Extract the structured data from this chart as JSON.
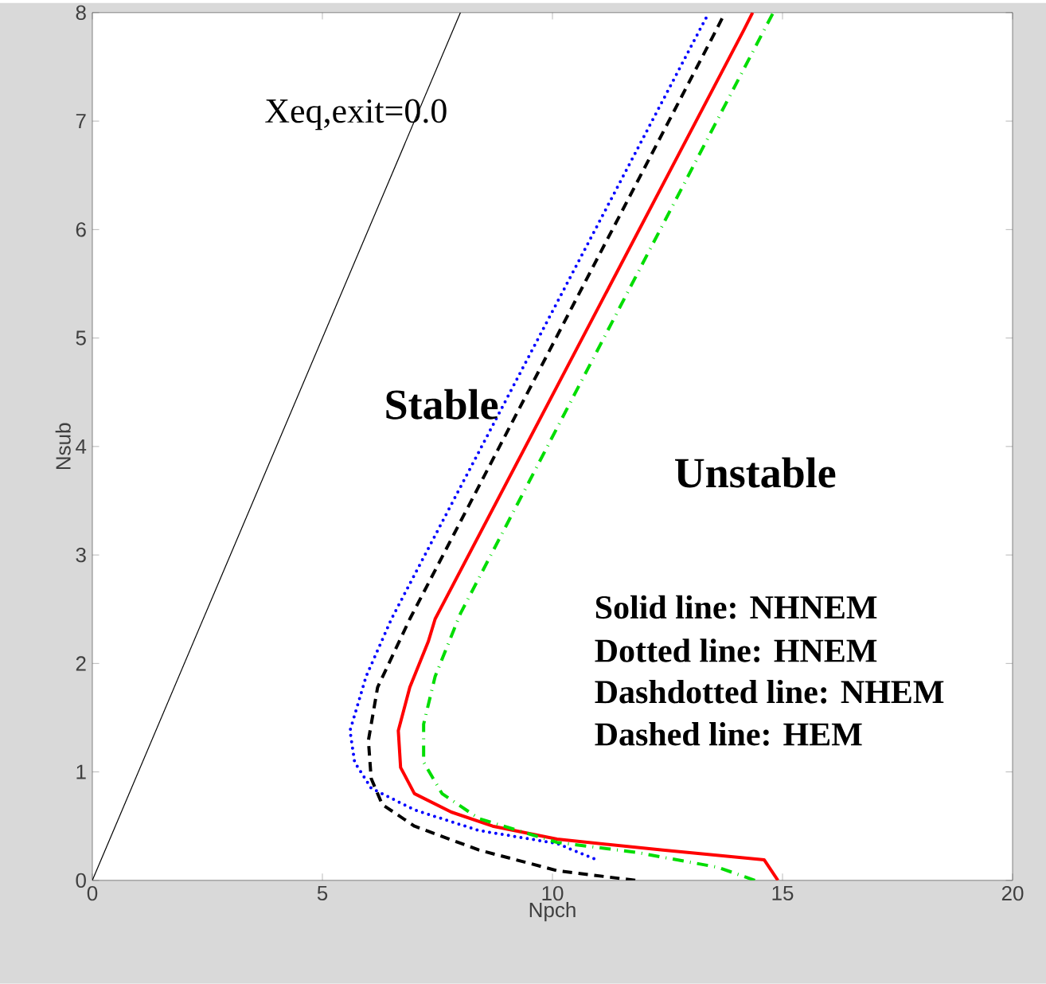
{
  "chart_data": {
    "type": "line",
    "xlabel": "Npch",
    "ylabel": "Nsub",
    "xlim": [
      0,
      20
    ],
    "ylim": [
      0,
      8
    ],
    "xticks": [
      0,
      5,
      10,
      15,
      20
    ],
    "yticks": [
      0,
      1,
      2,
      3,
      4,
      5,
      6,
      7,
      8
    ],
    "grid": false,
    "annotations": [
      "Xeq,exit=0.0",
      "Stable",
      "Unstable",
      "Solid line: NHNEM",
      "Dotted line: HNEM",
      "Dashdotted line: NHEM",
      "Dashed line: HEM"
    ],
    "series": [
      {
        "color": "#000000",
        "line_style": "solid",
        "x": [
          0,
          8
        ],
        "values": [
          0,
          8
        ]
      },
      {
        "color": "#0000ff",
        "line_style": "dotted",
        "x": [
          10.9,
          10.1,
          8.4,
          7.0,
          6.06,
          5.7,
          5.6,
          5.95,
          6.5,
          13.2,
          13.4
        ],
        "values": [
          0.2,
          0.34,
          0.46,
          0.65,
          0.85,
          1.09,
          1.38,
          1.88,
          2.41,
          7.84,
          8
        ]
      },
      {
        "color": "#000000",
        "line_style": "dashed",
        "x": [
          11.8,
          10.1,
          8.4,
          7.0,
          6.3,
          6.06,
          6.0,
          6.2,
          6.9,
          13.56,
          13.75
        ],
        "values": [
          0,
          0.09,
          0.28,
          0.5,
          0.7,
          0.94,
          1.29,
          1.78,
          2.41,
          7.84,
          8
        ]
      },
      {
        "color": "#ff0000",
        "line_style": "solid",
        "x": [
          14.9,
          14.6,
          12.4,
          10.1,
          8.7,
          7.8,
          7.0,
          6.7,
          6.65,
          6.9,
          7.3,
          7.45,
          14.16,
          14.35
        ],
        "values": [
          0,
          0.19,
          0.28,
          0.38,
          0.5,
          0.63,
          0.8,
          1.04,
          1.38,
          1.78,
          2.2,
          2.41,
          7.84,
          8
        ]
      },
      {
        "color": "#00dd00",
        "line_style": "dashdot",
        "x": [
          14.4,
          13.6,
          11.8,
          10.1,
          8.4,
          7.6,
          7.2,
          7.2,
          7.45,
          8.0,
          14.6,
          14.8
        ],
        "values": [
          0,
          0.12,
          0.26,
          0.35,
          0.57,
          0.8,
          1.09,
          1.44,
          1.88,
          2.46,
          7.84,
          8
        ]
      }
    ]
  }
}
